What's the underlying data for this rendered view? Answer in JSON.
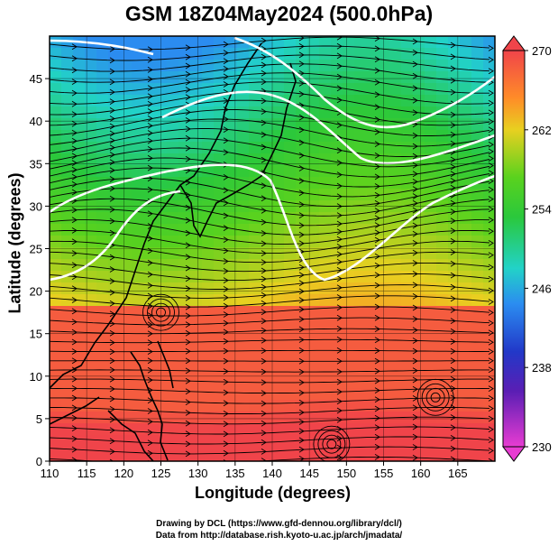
{
  "title": "GSM 18Z04May2024 (500.0hPa)",
  "axes": {
    "xlabel": "Longitude (degrees)",
    "ylabel": "Latitude  (degrees)",
    "x_ticks": [
      "110",
      "115",
      "120",
      "125",
      "130",
      "135",
      "140",
      "145",
      "150",
      "155",
      "160",
      "165"
    ],
    "y_ticks": [
      "0",
      "5",
      "10",
      "15",
      "20",
      "25",
      "30",
      "35",
      "40",
      "45"
    ]
  },
  "colorbar": {
    "labels": [
      "270",
      "262",
      "254",
      "246",
      "238",
      "230"
    ]
  },
  "credits": {
    "line1": "Drawing by DCL (https://www.gfd-dennou.org/library/dcl/)",
    "line2": "Data from http://database.rish.kyoto-u.ac.jp/arch/jmadata/"
  }
}
